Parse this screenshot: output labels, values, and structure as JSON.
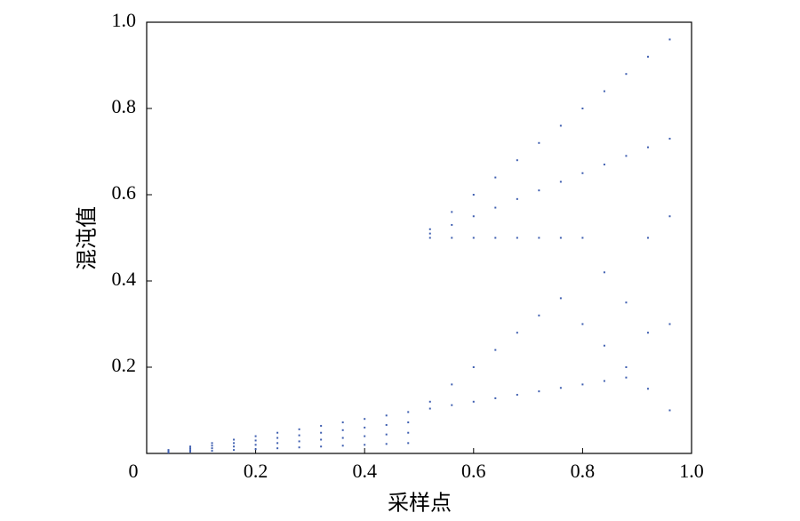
{
  "chart_data": {
    "type": "scatter",
    "xlabel": "采样点",
    "ylabel": "混沌值",
    "color": "#3f5fb0",
    "xlim": [
      0,
      1
    ],
    "ylim": [
      0,
      1
    ],
    "xticks": [
      0,
      0.2,
      0.4,
      0.6,
      0.8,
      {
        "value": 1,
        "label": "1.0"
      }
    ],
    "yticks": [
      0.2,
      0.4,
      0.6,
      0.8,
      {
        "value": 1,
        "label": "1.0"
      }
    ],
    "x": [
      0.04,
      0.04,
      0.04,
      0.04,
      0.08,
      0.08,
      0.08,
      0.08,
      0.12,
      0.12,
      0.12,
      0.12,
      0.16,
      0.16,
      0.16,
      0.16,
      0.2,
      0.2,
      0.2,
      0.2,
      0.24,
      0.24,
      0.24,
      0.24,
      0.28,
      0.28,
      0.28,
      0.28,
      0.32,
      0.32,
      0.32,
      0.32,
      0.36,
      0.36,
      0.36,
      0.36,
      0.4,
      0.4,
      0.4,
      0.4,
      0.44,
      0.44,
      0.44,
      0.44,
      0.48,
      0.48,
      0.48,
      0.48,
      0.52,
      0.52,
      0.52,
      0.52,
      0.52,
      0.56,
      0.56,
      0.56,
      0.56,
      0.56,
      0.6,
      0.6,
      0.6,
      0.6,
      0.6,
      0.64,
      0.64,
      0.64,
      0.64,
      0.64,
      0.68,
      0.68,
      0.68,
      0.68,
      0.68,
      0.72,
      0.72,
      0.72,
      0.72,
      0.72,
      0.76,
      0.76,
      0.76,
      0.76,
      0.76,
      0.8,
      0.8,
      0.8,
      0.8,
      0.8,
      0.84,
      0.84,
      0.84,
      0.84,
      0.84,
      0.88,
      0.88,
      0.88,
      0.88,
      0.88,
      0.92,
      0.92,
      0.92,
      0.92,
      0.92,
      0.96,
      0.96,
      0.96,
      0.96,
      0.96
    ],
    "values": [
      0.002,
      0.004,
      0.006,
      0.008,
      0.004,
      0.008,
      0.012,
      0.016,
      0.006,
      0.012,
      0.018,
      0.024,
      0.008,
      0.016,
      0.024,
      0.032,
      0.01,
      0.02,
      0.03,
      0.04,
      0.012,
      0.024,
      0.036,
      0.048,
      0.014,
      0.028,
      0.042,
      0.056,
      0.016,
      0.032,
      0.048,
      0.064,
      0.018,
      0.036,
      0.054,
      0.072,
      0.02,
      0.04,
      0.06,
      0.08,
      0.022,
      0.044,
      0.066,
      0.088,
      0.024,
      0.048,
      0.072,
      0.096,
      0.104,
      0.12,
      0.5,
      0.51,
      0.52,
      0.112,
      0.16,
      0.5,
      0.53,
      0.56,
      0.12,
      0.2,
      0.5,
      0.55,
      0.6,
      0.128,
      0.24,
      0.5,
      0.57,
      0.64,
      0.136,
      0.28,
      0.5,
      0.59,
      0.68,
      0.144,
      0.32,
      0.5,
      0.61,
      0.72,
      0.152,
      0.36,
      0.5,
      0.63,
      0.76,
      0.16,
      0.3,
      0.5,
      0.65,
      0.8,
      0.168,
      0.25,
      0.42,
      0.67,
      0.84,
      0.176,
      0.2,
      0.35,
      0.69,
      0.88,
      0.15,
      0.28,
      0.5,
      0.71,
      0.92,
      0.1,
      0.3,
      0.55,
      0.73,
      0.96
    ]
  }
}
